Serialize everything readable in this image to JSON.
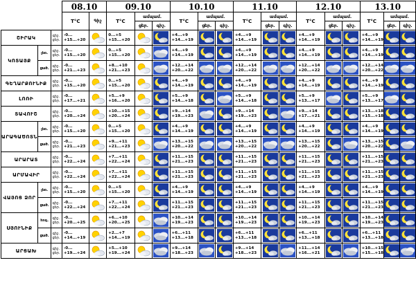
{
  "header": {
    "dates": [
      "08.10",
      "09.10",
      "10.10",
      "11.10",
      "12.10",
      "13.10"
    ],
    "temp_label": "T°C",
    "night_label": "Գիշ",
    "cloud_label": "ամպամ.",
    "cloud_day": "ցեր.",
    "cloud_night": "գիշ."
  },
  "labels": {
    "night": "գիշ.",
    "day": "ցեր.",
    "lowland": "ցած.",
    "highland": "լեռ."
  },
  "regions": [
    {
      "name": "ՇԻՐԱԿ",
      "rows": [
        {
          "sub": "",
          "d0": [
            "-0...",
            "+15...+20"
          ],
          "d1": [
            "0...+5",
            "+15...+20"
          ],
          "d2": [
            "+4...+9",
            "+14...+19"
          ],
          "d3": [
            "+4...+9",
            "+14...+19"
          ],
          "d4": [
            "+4...+9",
            "+14...+19"
          ],
          "d5": [
            "+4...+9",
            "+14...+19"
          ],
          "icons": [
            "sun",
            "sun",
            "moon",
            "moon",
            "moon",
            "moon",
            "moon",
            "moon",
            "moon",
            "moon",
            "moon"
          ]
        }
      ]
    },
    {
      "name": "ԿՈՏԱՅՔ",
      "rows": [
        {
          "sub": "լեռ.",
          "d0": [
            "-0...",
            "+15...+20"
          ],
          "d1": [
            "0...+5",
            "+15...+20"
          ],
          "d2": [
            "+4...+9",
            "+14...+19"
          ],
          "d3": [
            "+4...+9",
            "+14...+19"
          ],
          "d4": [
            "+4...+9",
            "+14...+19"
          ],
          "d5": [
            "+4...+9",
            "+14...+19"
          ],
          "icons": [
            "sun",
            "sun",
            "cloud",
            "moon",
            "moon",
            "moon",
            "moon",
            "moon",
            "moon",
            "moon",
            "moon"
          ]
        },
        {
          "sub": "ցած.",
          "d0": [
            "-0...",
            "+21...+23"
          ],
          "d1": [
            "+8...+10",
            "+21...+23"
          ],
          "d2": [
            "+12...+14",
            "+20...+22"
          ],
          "d3": [
            "+12...+14",
            "+20...+22"
          ],
          "d4": [
            "+12...+14",
            "+20...+22"
          ],
          "d5": [
            "+12...+14",
            "+20...+22"
          ],
          "icons": [
            "sun",
            "sun",
            "cloud",
            "cloud",
            "cloud",
            "cloud",
            "cloud",
            "cloud",
            "cloud",
            "cloud",
            "cloud"
          ]
        }
      ]
    },
    {
      "name": "ԳԵՂԱՐՔՈՒՆԻՔ",
      "rows": [
        {
          "sub": "",
          "d0": [
            "-0...",
            "+15...+20"
          ],
          "d1": [
            "0...+5",
            "+15...+20"
          ],
          "d2": [
            "+4...+9",
            "+14...+19"
          ],
          "d3": [
            "+4...+9",
            "+14...+19"
          ],
          "d4": [
            "+4...+9",
            "+14...+19"
          ],
          "d5": [
            "+4...+9",
            "+14...+19"
          ],
          "icons": [
            "sun",
            "sun",
            "moon",
            "moon",
            "moon",
            "moon",
            "moon",
            "moon",
            "moon",
            "moon",
            "moon"
          ]
        }
      ]
    },
    {
      "name": "ԼՈՌԻ",
      "rows": [
        {
          "sub": "",
          "d0": [
            "-0...",
            "+17...+21"
          ],
          "d1": [
            "+5...+9",
            "+16...+20"
          ],
          "d2": [
            "+5...+9",
            "+14...+18"
          ],
          "d3": [
            "+5...+9",
            "+14...+18"
          ],
          "d4": [
            "+5...+9",
            "+13...+17"
          ],
          "d5": [
            "+5...+9",
            "+13...+17"
          ],
          "icons": [
            "sun",
            "sun",
            "moon",
            "moon",
            "cloud",
            "moon",
            "moon",
            "cloud",
            "moon",
            "cloud",
            "moon"
          ]
        }
      ]
    },
    {
      "name": "ՏԱՎՈՒՇ",
      "rows": [
        {
          "sub": "",
          "d0": [
            "-0...",
            "+20...+24"
          ],
          "d1": [
            "+10...+15",
            "+20...+24"
          ],
          "d2": [
            "+9...+14",
            "+19...+23"
          ],
          "d3": [
            "+9...+14",
            "+19...+23"
          ],
          "d4": [
            "+9...+14",
            "+17...+21"
          ],
          "d5": [
            "+13...+18",
            "+15...+18"
          ],
          "icons": [
            "sun",
            "sun",
            "moon",
            "cloud",
            "moon",
            "moon",
            "cloud",
            "moon",
            "moon",
            "moon",
            "moon"
          ]
        }
      ]
    },
    {
      "name": "ԱՐԱԳԱԾՈՏՆ",
      "rows": [
        {
          "sub": "լեռ.",
          "d0": [
            "-0...",
            "+15...+20"
          ],
          "d1": [
            "0...+5",
            "+15...+20"
          ],
          "d2": [
            "+4...+9",
            "+14...+19"
          ],
          "d3": [
            "+4...+9",
            "+14...+19"
          ],
          "d4": [
            "+4...+9",
            "+14...+19"
          ],
          "d5": [
            "+4...+9",
            "+14...+19"
          ],
          "icons": [
            "sun",
            "sun",
            "moon",
            "moon",
            "moon",
            "moon",
            "moon",
            "moon",
            "moon",
            "moon",
            "moon"
          ]
        },
        {
          "sub": "ցած.",
          "d0": [
            "-0...",
            "+21...+23"
          ],
          "d1": [
            "+9...+11",
            "+21...+23"
          ],
          "d2": [
            "+13...+15",
            "+20...+22"
          ],
          "d3": [
            "+13...+15",
            "+20...+22"
          ],
          "d4": [
            "+13...+15",
            "+20...+22"
          ],
          "d5": [
            "+13...+15",
            "+20...+22"
          ],
          "icons": [
            "sun",
            "sun",
            "cloud",
            "cloud",
            "cloud",
            "cloud",
            "cloud",
            "moon",
            "cloud",
            "moon",
            "cloud"
          ]
        }
      ]
    },
    {
      "name": "ԱՐԱՐԱՏ",
      "rows": [
        {
          "sub": "",
          "d0": [
            "-0...",
            "+22...+24"
          ],
          "d1": [
            "+7...+11",
            "+22...+24"
          ],
          "d2": [
            "+11...+15",
            "+21...+23"
          ],
          "d3": [
            "+11...+15",
            "+21...+23"
          ],
          "d4": [
            "+11...+15",
            "+21...+23"
          ],
          "d5": [
            "+11...+15",
            "+21...+23"
          ],
          "icons": [
            "sun",
            "sun",
            "moon",
            "moon",
            "moon",
            "moon",
            "moon",
            "moon",
            "moon",
            "moon",
            "moon"
          ]
        }
      ]
    },
    {
      "name": "ԱՐՄԱՎԻՐ",
      "rows": [
        {
          "sub": "",
          "d0": [
            "-0...",
            "+22...+24"
          ],
          "d1": [
            "+7...+11",
            "+22...+24"
          ],
          "d2": [
            "+11...+15",
            "+21...+23"
          ],
          "d3": [
            "+11...+15",
            "+21...+23"
          ],
          "d4": [
            "+11...+15",
            "+21...+23"
          ],
          "d5": [
            "+11...+15",
            "+21...+23"
          ],
          "icons": [
            "sun",
            "sun",
            "moon",
            "moon",
            "moon",
            "moon",
            "moon",
            "moon",
            "moon",
            "moon",
            "moon"
          ]
        }
      ]
    },
    {
      "name": "ՎԱՅՈՑ ՁՈՐ",
      "rows": [
        {
          "sub": "լեռ.",
          "d0": [
            "-0...",
            "+15...+20"
          ],
          "d1": [
            "0...+5",
            "+15...+20"
          ],
          "d2": [
            "+4...+9",
            "+14...+19"
          ],
          "d3": [
            "+4...+9",
            "+14...+19"
          ],
          "d4": [
            "+4...+9",
            "+14...+19"
          ],
          "d5": [
            "+4...+9",
            "+14...+19"
          ],
          "icons": [
            "sun",
            "sun",
            "moon",
            "moon",
            "moon",
            "moon",
            "moon",
            "moon",
            "moon",
            "moon",
            "moon"
          ]
        },
        {
          "sub": "ցած.",
          "d0": [
            "-0...",
            "+22...+24"
          ],
          "d1": [
            "+7...+11",
            "+22...+24"
          ],
          "d2": [
            "+11...+15",
            "+21...+23"
          ],
          "d3": [
            "+11...+15",
            "+21...+23"
          ],
          "d4": [
            "+11...+15",
            "+21...+23"
          ],
          "d5": [
            "+11...+15",
            "+21...+23"
          ],
          "icons": [
            "sun",
            "sun",
            "moon",
            "moon",
            "moon",
            "moon",
            "moon",
            "moon",
            "moon",
            "moon",
            "moon"
          ]
        }
      ]
    },
    {
      "name": "ՍՅՈՒՆԻՔ",
      "rows": [
        {
          "sub": "հոգ.",
          "d0": [
            "-0...",
            "+20...+25"
          ],
          "d1": [
            "+6...+10",
            "+20...+25"
          ],
          "d2": [
            "+10...+14",
            "+19...+23"
          ],
          "d3": [
            "+10...+14",
            "+19...+23"
          ],
          "d4": [
            "+10...+14",
            "+19...+23"
          ],
          "d5": [
            "+10...+14",
            "+19...+23"
          ],
          "icons": [
            "sun",
            "sun",
            "cloud",
            "moon",
            "moon",
            "moon",
            "moon",
            "moon",
            "moon",
            "moon",
            "moon"
          ]
        },
        {
          "sub": "ցած.",
          "d0": [
            "-0...",
            "+14...+19"
          ],
          "d1": [
            "+2...+7",
            "+14...+19"
          ],
          "d2": [
            "+6...+11",
            "+13...+18"
          ],
          "d3": [
            "+6...+11",
            "+13...+18"
          ],
          "d4": [
            "+6...+11",
            "+13...+18"
          ],
          "d5": [
            "+6...+11",
            "+13...+18"
          ],
          "icons": [
            "sun",
            "sun",
            "cloud",
            "moon",
            "moon",
            "moon",
            "moon",
            "moon",
            "moon",
            "moon",
            "moon"
          ]
        }
      ]
    },
    {
      "name": "ԱՐՑԱԽ",
      "rows": [
        {
          "sub": "",
          "d0": [
            "-0...",
            "+19...+24"
          ],
          "d1": [
            "+5...+10",
            "+19...+24"
          ],
          "d2": [
            "+9...+14",
            "+18...+23"
          ],
          "d3": [
            "+9...+14",
            "+18...+23"
          ],
          "d4": [
            "+11...+14",
            "+16...+21"
          ],
          "d5": [
            "+10...+15",
            "+15...+18"
          ],
          "icons": [
            "sun",
            "sun",
            "cloud",
            "cloud",
            "moon",
            "moon",
            "cloud",
            "moon",
            "cloud",
            "moon",
            "cloud"
          ]
        }
      ]
    }
  ]
}
